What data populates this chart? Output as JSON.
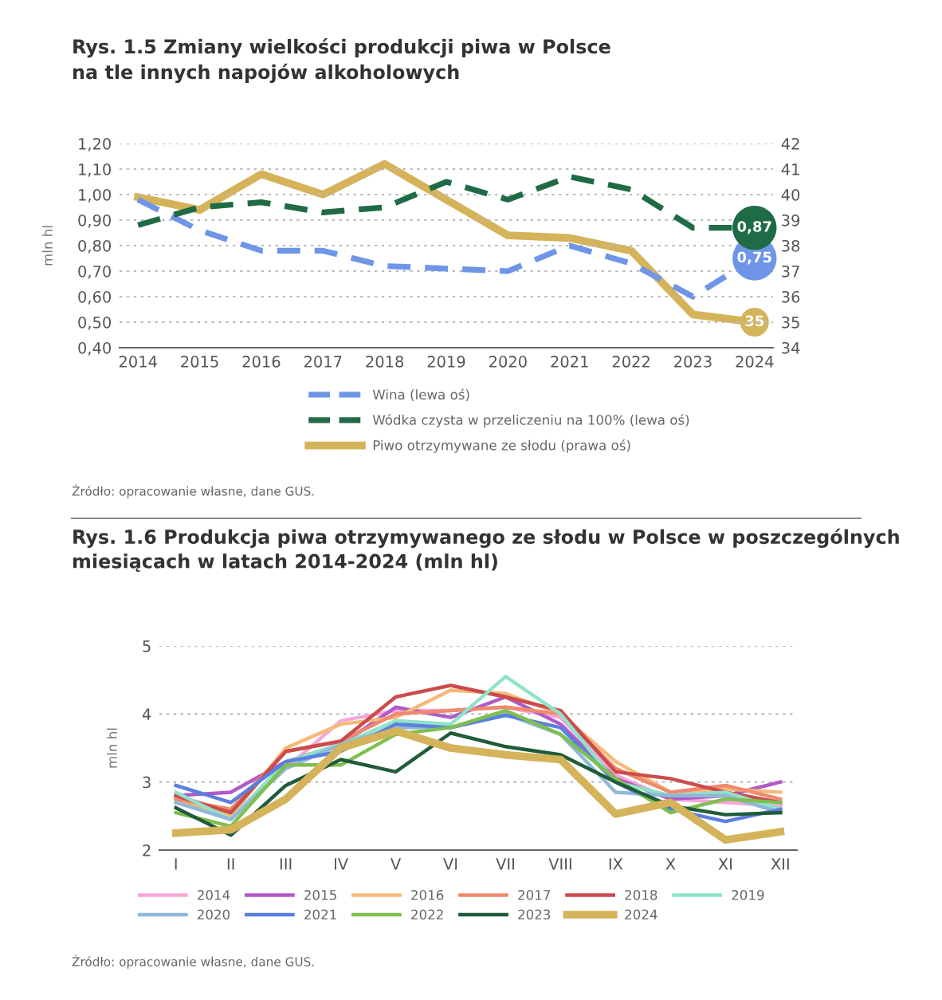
{
  "chart_data": [
    {
      "type": "line",
      "title": "Rys. 1.5 Zmiany wielkości produkcji piwa w Polsce\nna tle innych napojów alkoholowych",
      "ylabel": "mln hl",
      "categories": [
        "2014",
        "2015",
        "2016",
        "2017",
        "2018",
        "2019",
        "2020",
        "2021",
        "2022",
        "2023",
        "2024"
      ],
      "ylim": [
        0.4,
        1.2
      ],
      "yticks": [
        {
          "value": 0.4,
          "label": "0,40"
        },
        {
          "value": 0.5,
          "label": "0,50"
        },
        {
          "value": 0.6,
          "label": "0,60"
        },
        {
          "value": 0.7,
          "label": "0,70"
        },
        {
          "value": 0.8,
          "label": "0,80"
        },
        {
          "value": 0.9,
          "label": "0,90"
        },
        {
          "value": 1.0,
          "label": "1,00"
        },
        {
          "value": 1.1,
          "label": "1,10"
        },
        {
          "value": 1.2,
          "label": "1,20"
        }
      ],
      "y2lim": [
        34,
        42
      ],
      "y2ticks": [
        34,
        35,
        36,
        37,
        38,
        39,
        40,
        41,
        42
      ],
      "grid": "y",
      "legend": "bottom",
      "series": [
        {
          "name": "Wina (lewa oś)",
          "color": "#6f96e6",
          "line_style": "dashed",
          "values": [
            0.98,
            0.86,
            0.78,
            0.78,
            0.72,
            0.71,
            0.7,
            0.8,
            0.73,
            0.6,
            0.75
          ],
          "value_labels": [
            null,
            null,
            null,
            null,
            null,
            null,
            null,
            null,
            null,
            null,
            "0,75"
          ]
        },
        {
          "name": "Wódka czysta w przeliczeniu na 100% (lewa oś)",
          "color": "#1f6b45",
          "line_style": "dashed",
          "values": [
            0.88,
            0.95,
            0.97,
            0.93,
            0.95,
            1.05,
            0.98,
            1.07,
            1.02,
            0.87,
            0.87
          ],
          "value_labels": [
            null,
            null,
            null,
            null,
            null,
            null,
            null,
            null,
            null,
            null,
            "0,87"
          ]
        },
        {
          "name": "Piwo otrzymywane ze słodu (prawa oś)",
          "color": "#d4b35a",
          "line_style": "solid",
          "axis": "y2",
          "values": [
            39.9,
            39.4,
            40.8,
            40.0,
            41.2,
            39.8,
            38.4,
            38.3,
            37.8,
            35.3,
            35
          ],
          "value_labels": [
            null,
            null,
            null,
            null,
            null,
            null,
            null,
            null,
            null,
            null,
            "35"
          ]
        }
      ],
      "annotations": [
        "Źródło: opracowanie własne, dane GUS."
      ]
    },
    {
      "type": "line",
      "title": "Rys. 1.6 Produkcja piwa otrzymywanego ze słodu w Polsce w poszczególnych\nmiesiącach w latach 2014-2024 (mln hl)",
      "ylabel": "mln hl",
      "categories": [
        "I",
        "II",
        "III",
        "IV",
        "V",
        "VI",
        "VII",
        "VIII",
        "IX",
        "X",
        "XI",
        "XII"
      ],
      "ylim": [
        2,
        5
      ],
      "yticks": [
        2,
        3,
        4,
        5
      ],
      "grid": "y",
      "legend": "bottom",
      "series": [
        {
          "name": "2014",
          "color": "#f4a7d8",
          "values": [
            2.7,
            2.5,
            3.2,
            3.9,
            4.05,
            4.05,
            4.1,
            3.95,
            3.1,
            2.75,
            2.7,
            2.65
          ]
        },
        {
          "name": "2015",
          "color": "#b05ac8",
          "values": [
            2.8,
            2.85,
            3.3,
            3.55,
            4.1,
            3.95,
            4.25,
            3.85,
            3.05,
            2.75,
            2.8,
            3.0
          ]
        },
        {
          "name": "2016",
          "color": "#f5b97a",
          "values": [
            2.75,
            2.5,
            3.5,
            3.85,
            3.95,
            4.35,
            4.3,
            4.0,
            3.3,
            2.85,
            2.9,
            2.85
          ]
        },
        {
          "name": "2017",
          "color": "#ef8a6e",
          "values": [
            2.75,
            2.6,
            3.45,
            3.6,
            4.0,
            4.05,
            4.1,
            4.0,
            3.2,
            2.85,
            2.95,
            2.75
          ]
        },
        {
          "name": "2018",
          "color": "#cc4b4b",
          "values": [
            2.8,
            2.55,
            3.45,
            3.6,
            4.25,
            4.42,
            4.25,
            4.05,
            3.15,
            3.05,
            2.85,
            2.7
          ]
        },
        {
          "name": "2019",
          "color": "#8fe3c8",
          "values": [
            2.85,
            2.45,
            3.3,
            3.55,
            3.9,
            3.85,
            4.55,
            4.0,
            3.0,
            2.8,
            2.85,
            2.6
          ]
        },
        {
          "name": "2020",
          "color": "#8fb8d8",
          "values": [
            2.7,
            2.45,
            3.2,
            3.55,
            3.8,
            3.8,
            4.0,
            3.7,
            2.85,
            2.8,
            2.8,
            2.55
          ]
        },
        {
          "name": "2021",
          "color": "#5b7fe0",
          "values": [
            2.95,
            2.7,
            3.3,
            3.45,
            3.85,
            3.8,
            3.98,
            3.8,
            3.0,
            2.6,
            2.42,
            2.6
          ]
        },
        {
          "name": "2022",
          "color": "#7fbf4f",
          "values": [
            2.55,
            2.35,
            3.25,
            3.25,
            3.7,
            3.8,
            4.05,
            3.7,
            3.05,
            2.55,
            2.75,
            2.7
          ]
        },
        {
          "name": "2023",
          "color": "#1f5c3a",
          "values": [
            2.62,
            2.22,
            2.95,
            3.33,
            3.15,
            3.72,
            3.52,
            3.4,
            3.0,
            2.65,
            2.52,
            2.55
          ]
        },
        {
          "name": "2024",
          "color": "#d4b35a",
          "values": [
            2.25,
            2.3,
            2.75,
            3.5,
            3.75,
            3.5,
            3.4,
            3.33,
            2.53,
            2.7,
            2.15,
            2.27
          ]
        }
      ],
      "annotations": [
        "Źródło: opracowanie własne, dane GUS."
      ]
    }
  ]
}
